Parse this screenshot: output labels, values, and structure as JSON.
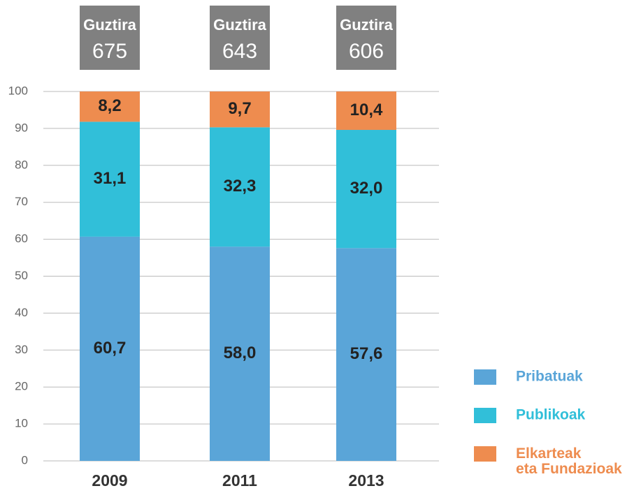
{
  "chart_data": {
    "type": "stacked_bar",
    "categories": [
      "2009",
      "2011",
      "2013"
    ],
    "series": [
      {
        "name": "Pribatuak",
        "color": "#5aa5d8",
        "values": [
          60.7,
          58.0,
          57.6
        ],
        "value_labels": [
          "60,7",
          "58,0",
          "57,6"
        ]
      },
      {
        "name": "Publikoak",
        "color": "#31bfd9",
        "values": [
          31.1,
          32.3,
          32.0
        ],
        "value_labels": [
          "31,1",
          "32,3",
          "32,0"
        ]
      },
      {
        "name": "Elkarteak eta Fundazioak",
        "color": "#ee8c4f",
        "values": [
          8.2,
          9.7,
          10.4
        ],
        "value_labels": [
          "8,2",
          "9,7",
          "10,4"
        ]
      }
    ],
    "totals": {
      "label": "Guztira",
      "values": [
        675,
        643,
        606
      ]
    },
    "ylim": [
      0,
      100
    ],
    "yticks": [
      0,
      10,
      20,
      30,
      40,
      50,
      60,
      70,
      80,
      90,
      100
    ],
    "grid": true,
    "legend": "right"
  }
}
